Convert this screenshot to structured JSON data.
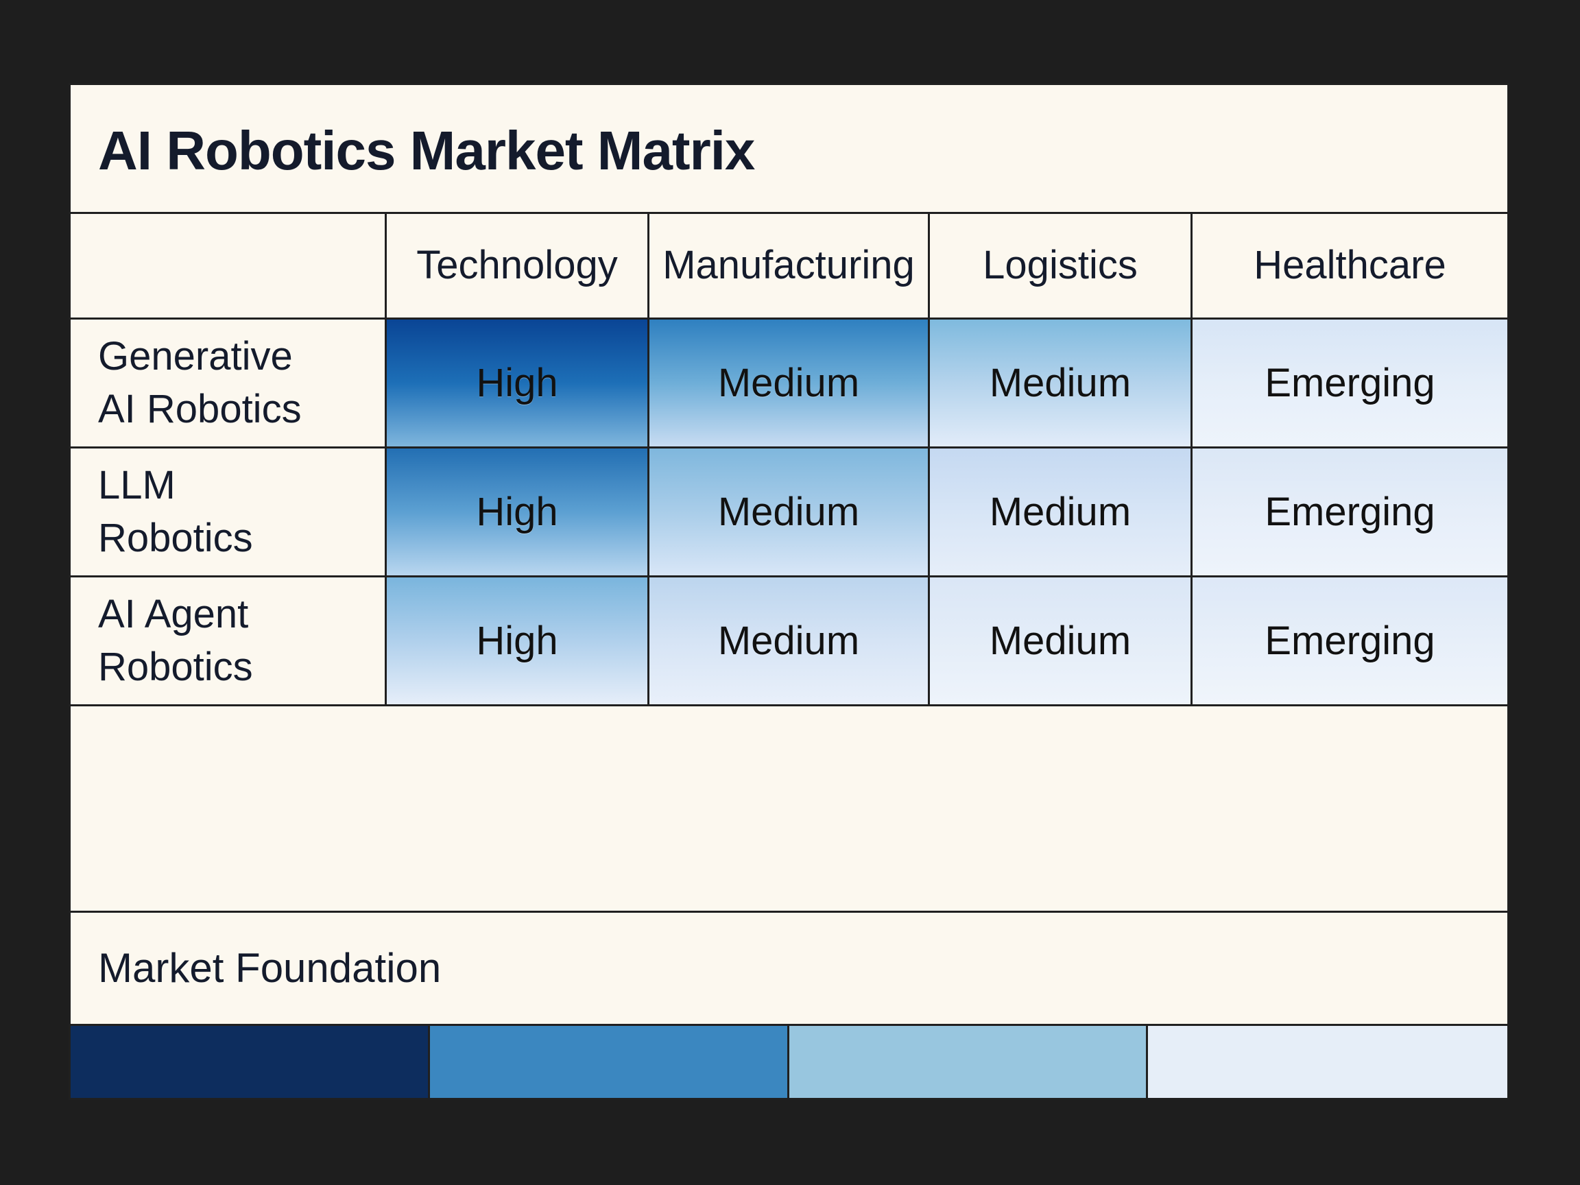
{
  "chart_data": {
    "type": "heatmap",
    "title": "AI Robotics Market Matrix",
    "columns": [
      "Technology",
      "Manufacturing",
      "Logistics",
      "Healthcare"
    ],
    "rows": [
      {
        "label": "Generative AI Robotics",
        "values": [
          "High",
          "Medium",
          "Medium",
          "Emerging"
        ]
      },
      {
        "label": "LLM Robotics",
        "values": [
          "High",
          "Medium",
          "Medium",
          "Emerging"
        ]
      },
      {
        "label": "AI Agent Robotics",
        "values": [
          "High",
          "Medium",
          "Medium",
          "Emerging"
        ]
      }
    ],
    "footer_label": "Market Foundation",
    "legend_colors": [
      "#0d2d5e",
      "#3b87c0",
      "#98c6df",
      "#e6eef8"
    ]
  },
  "colors": {
    "grad_0": [
      "#0a4595",
      "#1d6fb7",
      "#7fb6dd"
    ],
    "grad_1": [
      "#2f80c0",
      "#6eaed8",
      "#c8dcf2"
    ],
    "grad_2": [
      "#7fbade",
      "#b4d3ec",
      "#e2ecf9"
    ],
    "grad_3": [
      "#d7e5f6",
      "#e5eef9",
      "#eef4fb"
    ],
    "grad_4": [
      "#236fb3",
      "#5ca0d2",
      "#b8d6ef"
    ],
    "grad_5": [
      "#7fb7dd",
      "#a9cde9",
      "#d8e6f7"
    ],
    "grad_6": [
      "#c5d9f1",
      "#d7e5f6",
      "#e6eef9"
    ],
    "grad_7": [
      "#dbe7f6",
      "#e6eef9",
      "#eef4fb"
    ],
    "grad_8": [
      "#7ab5dd",
      "#b0d0ec",
      "#e6eef9"
    ],
    "grad_9": [
      "#bcd5ee",
      "#d6e4f5",
      "#e9f0fa"
    ],
    "grad_10": [
      "#dae6f6",
      "#e4edf8",
      "#eef4fb"
    ],
    "grad_11": [
      "#dde8f7",
      "#e7eff9",
      "#f0f5fb"
    ]
  }
}
